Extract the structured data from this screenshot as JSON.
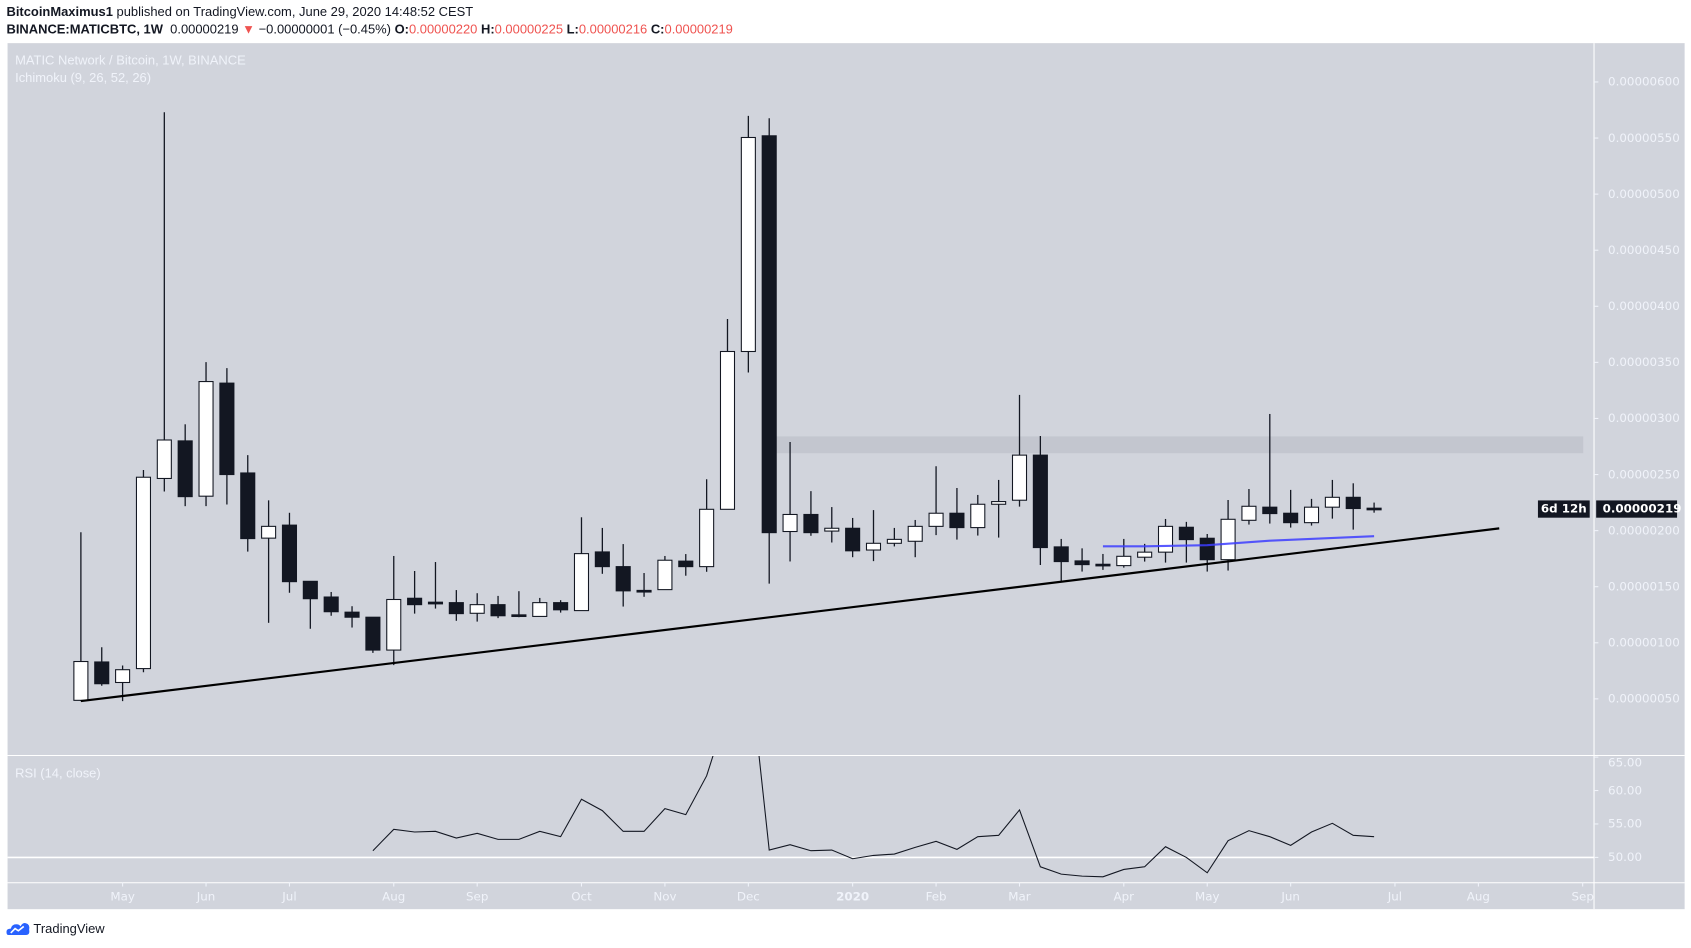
{
  "header": {
    "author": "BitcoinMaximus1",
    "published": " published on TradingView.com, June 29, 2020 14:48:52 CEST",
    "symbol": "BINANCE:MATICBTC, 1W",
    "last": "0.00000219",
    "change": "−0.00000001 (−0.45%)",
    "change_direction_icon": "triangle-down-icon",
    "o_label": "O:",
    "o_value": "0.00000220",
    "h_label": "H:",
    "h_value": "0.00000225",
    "l_label": "L:",
    "l_value": "0.00000216",
    "c_label": "C:",
    "c_value": "0.00000219"
  },
  "legend": {
    "title": "MATIC Network / Bitcoin, 1W, BINANCE",
    "indicator": "Ichimoku (9, 26, 52, 26)",
    "rsi": "RSI (14, close)"
  },
  "badges": {
    "price": "0.00000219",
    "countdown": "6d 12h"
  },
  "logo": {
    "text": "TradingView",
    "icon": "tradingview-cloud-icon"
  },
  "colors": {
    "up_body": "#ffffff",
    "down_body": "#131722",
    "background": "#d1d4dc",
    "trendline": "#000000",
    "ichimoku_line": "#3d3dff",
    "rsi_line": "#131722",
    "down_value": "#ef5350"
  },
  "chart_data": [
    {
      "type": "candlestick",
      "title": "MATIC Network / Bitcoin, 1W, BINANCE",
      "price_ticks": [
        {
          "value": 6e-06,
          "label": "0.00000600"
        },
        {
          "value": 5.5e-06,
          "label": "0.00000550"
        },
        {
          "value": 5e-06,
          "label": "0.00000500"
        },
        {
          "value": 4.5e-06,
          "label": "0.00000450"
        },
        {
          "value": 4e-06,
          "label": "0.00000400"
        },
        {
          "value": 3.5e-06,
          "label": "0.00000350"
        },
        {
          "value": 3e-06,
          "label": "0.00000300"
        },
        {
          "value": 2.5e-06,
          "label": "0.00000250"
        },
        {
          "value": 2e-06,
          "label": "0.00000200"
        },
        {
          "value": 1.5e-06,
          "label": "0.00000150"
        },
        {
          "value": 1e-06,
          "label": "0.00000100"
        },
        {
          "value": 5e-07,
          "label": "0.00000050"
        }
      ],
      "x_ticks": [
        {
          "date": "2019-05-06",
          "label": "May"
        },
        {
          "date": "2019-06-03",
          "label": "Jun"
        },
        {
          "date": "2019-07-01",
          "label": "Jul"
        },
        {
          "date": "2019-08-05",
          "label": "Aug"
        },
        {
          "date": "2019-09-02",
          "label": "Sep"
        },
        {
          "date": "2019-10-07",
          "label": "Oct"
        },
        {
          "date": "2019-11-04",
          "label": "Nov"
        },
        {
          "date": "2019-12-02",
          "label": "Dec"
        },
        {
          "date": "2020-01-06",
          "label": "2020",
          "bold": true
        },
        {
          "date": "2020-02-03",
          "label": "Feb"
        },
        {
          "date": "2020-03-02",
          "label": "Mar"
        },
        {
          "date": "2020-04-06",
          "label": "Apr"
        },
        {
          "date": "2020-05-04",
          "label": "May"
        },
        {
          "date": "2020-06-01",
          "label": "Jun"
        },
        {
          "date": "2020-07-06",
          "label": "Jul"
        },
        {
          "date": "2020-08-03",
          "label": "Aug"
        },
        {
          "date": "2020-09-07",
          "label": "Sep"
        }
      ],
      "candle_fields": [
        "date",
        "open",
        "high",
        "low",
        "close"
      ],
      "candles": [
        [
          "2019-04-22",
          4.87e-07,
          1.986e-06,
          4.8e-07,
          8.33e-07
        ],
        [
          "2019-04-29",
          8.29e-07,
          9.6e-07,
          6.17e-07,
          6.35e-07
        ],
        [
          "2019-05-06",
          6.46e-07,
          7.98e-07,
          4.8e-07,
          7.6e-07
        ],
        [
          "2019-05-13",
          7.7e-07,
          2.54e-06,
          7.37e-07,
          2.476e-06
        ],
        [
          "2019-05-20",
          2.465e-06,
          5.73e-06,
          2.349e-06,
          2.808e-06
        ],
        [
          "2019-05-27",
          2.8e-06,
          2.948e-06,
          2.218e-06,
          2.303e-06
        ],
        [
          "2019-06-03",
          2.307e-06,
          3.502e-06,
          2.218e-06,
          3.329e-06
        ],
        [
          "2019-06-10",
          3.315e-06,
          3.449e-06,
          2.233e-06,
          2.5e-06
        ],
        [
          "2019-06-17",
          2.514e-06,
          2.673e-06,
          1.813e-06,
          1.929e-06
        ],
        [
          "2019-06-24",
          1.933e-06,
          2.27e-06,
          1.178e-06,
          2.038e-06
        ],
        [
          "2019-07-01",
          2.049e-06,
          2.159e-06,
          1.446e-06,
          1.545e-06
        ],
        [
          "2019-07-08",
          1.548e-06,
          1.548e-06,
          1.125e-06,
          1.393e-06
        ],
        [
          "2019-07-15",
          1.408e-06,
          1.453e-06,
          1.241e-06,
          1.277e-06
        ],
        [
          "2019-07-22",
          1.273e-06,
          1.326e-06,
          1.136e-06,
          1.228e-06
        ],
        [
          "2019-07-29",
          1.228e-06,
          1.228e-06,
          9.1e-07,
          9.35e-07
        ],
        [
          "2019-08-05",
          9.35e-07,
          1.774e-06,
          8.01e-07,
          1.386e-06
        ],
        [
          "2019-08-12",
          1.397e-06,
          1.64e-06,
          1.26e-06,
          1.34e-06
        ],
        [
          "2019-08-19",
          1.362e-06,
          1.72e-06,
          1.305e-06,
          1.347e-06
        ],
        [
          "2019-08-26",
          1.358e-06,
          1.47e-06,
          1.196e-06,
          1.26e-06
        ],
        [
          "2019-09-02",
          1.263e-06,
          1.442e-06,
          1.189e-06,
          1.34e-06
        ],
        [
          "2019-09-09",
          1.34e-06,
          1.418e-06,
          1.22e-06,
          1.241e-06
        ],
        [
          "2019-09-16",
          1.249e-06,
          1.46e-06,
          1.228e-06,
          1.241e-06
        ],
        [
          "2019-09-23",
          1.235e-06,
          1.4e-06,
          1.235e-06,
          1.358e-06
        ],
        [
          "2019-09-30",
          1.358e-06,
          1.38e-06,
          1.269e-06,
          1.294e-06
        ],
        [
          "2019-10-07",
          1.287e-06,
          2.119e-06,
          1.287e-06,
          1.795e-06
        ],
        [
          "2019-10-14",
          1.81e-06,
          2.024e-06,
          1.615e-06,
          1.679e-06
        ],
        [
          "2019-10-21",
          1.679e-06,
          1.88e-06,
          1.323e-06,
          1.463e-06
        ],
        [
          "2019-10-28",
          1.467e-06,
          1.622e-06,
          1.41e-06,
          1.466e-06
        ],
        [
          "2019-11-04",
          1.474e-06,
          1.774e-06,
          1.474e-06,
          1.736e-06
        ],
        [
          "2019-11-11",
          1.728e-06,
          1.791e-06,
          1.598e-06,
          1.679e-06
        ],
        [
          "2019-11-18",
          1.679e-06,
          2.458e-06,
          1.633e-06,
          2.19e-06
        ],
        [
          "2019-11-25",
          2.19e-06,
          3.887e-06,
          2.19e-06,
          3.597e-06
        ],
        [
          "2019-12-02",
          3.597e-06,
          5.698e-06,
          3.41e-06,
          5.505e-06
        ],
        [
          "2019-12-09",
          5.52e-06,
          5.677e-06,
          1.527e-06,
          1.982e-06
        ],
        [
          "2019-12-16",
          1.992e-06,
          2.79e-06,
          1.725e-06,
          2.144e-06
        ],
        [
          "2019-12-23",
          2.144e-06,
          2.352e-06,
          1.954e-06,
          1.982e-06
        ],
        [
          "2019-12-30",
          1.996e-06,
          2.21e-06,
          1.894e-06,
          2.021e-06
        ],
        [
          "2020-01-06",
          2.021e-06,
          2.113e-06,
          1.763e-06,
          1.82e-06
        ],
        [
          "2020-01-13",
          1.827e-06,
          2.183e-06,
          1.728e-06,
          1.887e-06
        ],
        [
          "2020-01-20",
          1.887e-06,
          2.024e-06,
          1.859e-06,
          1.922e-06
        ],
        [
          "2020-01-27",
          1.905e-06,
          2.095e-06,
          1.763e-06,
          2.038e-06
        ],
        [
          "2020-02-03",
          2.038e-06,
          2.574e-06,
          1.96e-06,
          2.155e-06
        ],
        [
          "2020-02-10",
          2.155e-06,
          2.38e-06,
          1.92e-06,
          2.027e-06
        ],
        [
          "2020-02-17",
          2.027e-06,
          2.318e-06,
          1.956e-06,
          2.235e-06
        ],
        [
          "2020-02-24",
          2.235e-06,
          2.452e-06,
          1.938e-06,
          2.259e-06
        ],
        [
          "2020-03-02",
          2.271e-06,
          3.21e-06,
          2.214e-06,
          2.673e-06
        ],
        [
          "2020-03-09",
          2.673e-06,
          2.844e-06,
          1.694e-06,
          1.849e-06
        ],
        [
          "2020-03-16",
          1.855e-06,
          1.926e-06,
          1.549e-06,
          1.724e-06
        ],
        [
          "2020-03-23",
          1.73e-06,
          1.842e-06,
          1.635e-06,
          1.697e-06
        ],
        [
          "2020-03-30",
          1.7e-06,
          1.792e-06,
          1.65e-06,
          1.688e-06
        ],
        [
          "2020-04-06",
          1.688e-06,
          1.926e-06,
          1.67e-06,
          1.771e-06
        ],
        [
          "2020-04-13",
          1.763e-06,
          1.882e-06,
          1.724e-06,
          1.808e-06
        ],
        [
          "2020-04-20",
          1.808e-06,
          2.104e-06,
          1.715e-06,
          2.038e-06
        ],
        [
          "2020-04-27",
          2.03e-06,
          2.078e-06,
          1.715e-06,
          1.92e-06
        ],
        [
          "2020-05-04",
          1.932e-06,
          1.97e-06,
          1.635e-06,
          1.741e-06
        ],
        [
          "2020-05-11",
          1.741e-06,
          2.273e-06,
          1.644e-06,
          2.101e-06
        ],
        [
          "2020-05-18",
          2.092e-06,
          2.371e-06,
          2.054e-06,
          2.217e-06
        ],
        [
          "2020-05-25",
          2.209e-06,
          3.04e-06,
          2.063e-06,
          2.152e-06
        ],
        [
          "2020-06-01",
          2.155e-06,
          2.363e-06,
          2.027e-06,
          2.071e-06
        ],
        [
          "2020-06-08",
          2.071e-06,
          2.283e-06,
          2.045e-06,
          2.209e-06
        ],
        [
          "2020-06-15",
          2.209e-06,
          2.452e-06,
          2.107e-06,
          2.297e-06
        ],
        [
          "2020-06-22",
          2.297e-06,
          2.422e-06,
          2.009e-06,
          2.197e-06
        ],
        [
          "2020-06-29",
          2.2e-06,
          2.25e-06,
          2.16e-06,
          2.19e-06
        ]
      ],
      "trendline": [
        [
          "2019-04-22",
          4.8e-07
        ],
        [
          "2020-08-10",
          2.02e-06
        ]
      ],
      "ichimoku_line": [
        [
          "2020-03-30",
          1.86e-06
        ],
        [
          "2020-04-13",
          1.86e-06
        ],
        [
          "2020-05-04",
          1.87e-06
        ],
        [
          "2020-05-25",
          1.91e-06
        ],
        [
          "2020-06-29",
          1.95e-06
        ]
      ],
      "resistance_zone": {
        "from": "2019-12-09",
        "low": 2.69e-06,
        "high": 2.84e-06
      },
      "ylim": [
        0,
        6.3e-06
      ],
      "grid": false
    },
    {
      "type": "line",
      "title": "RSI (14, close)",
      "y_ticks": [
        {
          "value": 65,
          "label": "65.00"
        },
        {
          "value": 60,
          "label": "60.00"
        },
        {
          "value": 55,
          "label": "55.00"
        },
        {
          "value": 50,
          "label": "50.00"
        }
      ],
      "reference_line": 50,
      "start_date": "2019-07-29",
      "values": [
        51.0,
        54.2,
        53.8,
        53.9,
        52.9,
        53.6,
        52.7,
        52.7,
        53.9,
        53.1,
        58.7,
        57.0,
        53.9,
        53.9,
        57.3,
        56.4,
        62.2,
        72,
        80,
        51.1,
        51.9,
        51.0,
        51.1,
        49.8,
        50.3,
        50.5,
        51.5,
        52.4,
        51.2,
        53.1,
        53.3,
        57.1,
        48.6,
        47.5,
        47.2,
        47.1,
        48.2,
        48.6,
        51.6,
        50.0,
        47.7,
        52.5,
        54.0,
        53.1,
        51.8,
        53.8,
        55.1,
        53.3,
        53.1
      ],
      "ylim": [
        46,
        65.3
      ]
    }
  ]
}
